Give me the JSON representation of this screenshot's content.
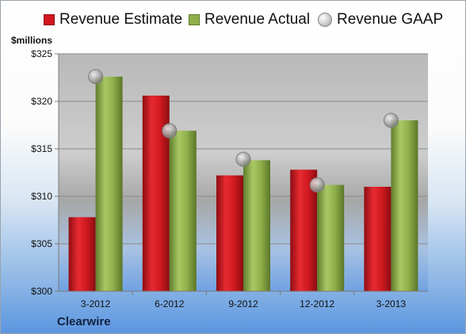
{
  "chart_data": {
    "type": "bar",
    "title": "",
    "ylabel": "$millions",
    "xlabel": "",
    "ylim": [
      300,
      325
    ],
    "yticks": [
      300,
      305,
      310,
      315,
      320,
      325
    ],
    "ytick_labels": [
      "$300",
      "$305",
      "$310",
      "$315",
      "$320",
      "$325"
    ],
    "categories": [
      "3-2012",
      "6-2012",
      "9-2012",
      "12-2012",
      "3-2013"
    ],
    "series": [
      {
        "name": "Revenue Estimate",
        "kind": "bar",
        "color": "#d2151e",
        "values": [
          307.8,
          320.6,
          312.2,
          312.8,
          311.0
        ]
      },
      {
        "name": "Revenue Actual",
        "kind": "bar",
        "color": "#8eb04a",
        "values": [
          322.6,
          316.9,
          313.8,
          311.2,
          318.0
        ]
      },
      {
        "name": "Revenue GAAP",
        "kind": "marker",
        "color": "#b5b5b5",
        "values": [
          322.6,
          316.9,
          313.9,
          311.2,
          318.0
        ]
      }
    ],
    "grid": true,
    "legend_position": "top"
  },
  "legend": {
    "estimate": "Revenue Estimate",
    "actual": "Revenue Actual",
    "gaap": "Revenue GAAP"
  },
  "units_label": "$millions",
  "company": "Clearwire"
}
